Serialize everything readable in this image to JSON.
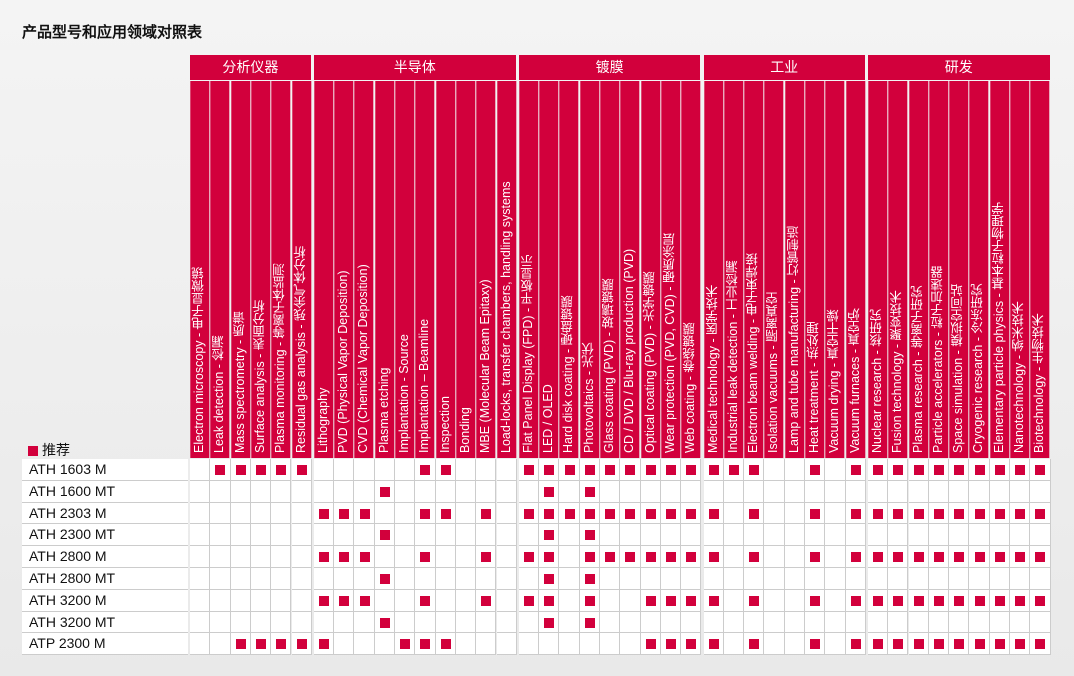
{
  "title": "产品型号和应用领域对照表",
  "legend": "推荐",
  "groups": [
    {
      "name": "分析仪器",
      "columns": [
        "Electron microscopy - 电子显微镜",
        "Leak detection - 检漏",
        "Mass spectrometry - 质谱",
        "Surface analysis - 表面分析",
        "Plasma monitoring - 等离子体监测",
        "Residual gas analysis - 残余气体分析"
      ]
    },
    {
      "name": "半导体",
      "columns": [
        "Lithography",
        "PVD (Physical Vapor Deposition)",
        "CVD (Chemical Vapor Deposition)",
        "Plasma etching",
        "Implantation - Source",
        "Implantation – Beamline",
        "Inspection",
        "Bonding",
        "MBE (Molecular Beam Epitaxy)",
        "Load-locks, transfer chambers, handling systems"
      ]
    },
    {
      "name": "镀膜",
      "columns": [
        "Flat Panel Display (FPD) - 平板显示",
        "LED / OLED",
        "Hard disk coating - 硬盘镀膜",
        "Photovoltaics - 光伏",
        "Glass coating (PVD) - 玻璃镀膜",
        "CD / DVD / Blu-ray production (PVD)",
        "Optical coating (PVD) - 光学镀膜",
        "Wear protection (PVD, CVD) - 硬质涂层",
        "Web coating - 卷绕镀膜"
      ]
    },
    {
      "name": "工业",
      "columns": [
        "Medical technology - 医学技术",
        "Industrial leak detection - 工业检漏",
        "Electron beam welding - 电子束焊接",
        "Isolation vacuums - 隔离真空",
        "Lamp and tube manufacturing - 灯管制造",
        "Heat treatment - 热处理",
        "Vacuum drying - 真空干燥",
        "Vacuum furnaces - 真空炉"
      ]
    },
    {
      "name": "研发",
      "columns": [
        "Nuclear research - 核研究",
        "Fusion technology - 聚变技术",
        "Plasma research - 等离子研究",
        "Particle accelerators - 粒子加速器",
        "Space simulation - 模拟空间站",
        "Cryogenic research - 冷冻研究",
        "Elementary particle physics - 基本粒子物理学",
        "Nanotechnology - 纳米技术",
        "Biotechnology - 生物技术"
      ]
    }
  ],
  "rows": [
    {
      "model": "ATH 1603 M",
      "marks": [
        1,
        2,
        3,
        4,
        5,
        11,
        12,
        16,
        17,
        18,
        19,
        20,
        21,
        22,
        23,
        24,
        25,
        26,
        27,
        30,
        32,
        33,
        34,
        35,
        36,
        37,
        38,
        39,
        40,
        41
      ]
    },
    {
      "model": "ATH 1600 MT",
      "marks": [
        9,
        17,
        19
      ]
    },
    {
      "model": "ATH 2303 M",
      "marks": [
        6,
        7,
        8,
        11,
        12,
        14,
        16,
        17,
        18,
        19,
        20,
        21,
        22,
        23,
        24,
        25,
        27,
        30,
        32,
        33,
        34,
        35,
        36,
        37,
        38,
        39,
        40,
        41
      ]
    },
    {
      "model": "ATH 2300 MT",
      "marks": [
        9,
        17,
        19
      ]
    },
    {
      "model": "ATH 2800 M",
      "marks": [
        6,
        7,
        8,
        11,
        14,
        16,
        17,
        19,
        20,
        21,
        22,
        23,
        24,
        25,
        27,
        30,
        32,
        33,
        34,
        35,
        36,
        37,
        38,
        39,
        40,
        41
      ]
    },
    {
      "model": "ATH 2800 MT",
      "marks": [
        9,
        17,
        19
      ]
    },
    {
      "model": "ATH 3200 M",
      "marks": [
        6,
        7,
        8,
        11,
        14,
        16,
        17,
        19,
        22,
        23,
        24,
        25,
        27,
        30,
        32,
        33,
        34,
        35,
        36,
        37,
        38,
        39,
        40,
        41
      ]
    },
    {
      "model": "ATH 3200 MT",
      "marks": [
        9,
        17,
        19
      ]
    },
    {
      "model": "ATP 2300 M",
      "marks": [
        2,
        3,
        4,
        5,
        6,
        10,
        11,
        12,
        22,
        23,
        24,
        25,
        27,
        30,
        32,
        33,
        34,
        35,
        36,
        37,
        38,
        39,
        40,
        41
      ]
    }
  ]
}
